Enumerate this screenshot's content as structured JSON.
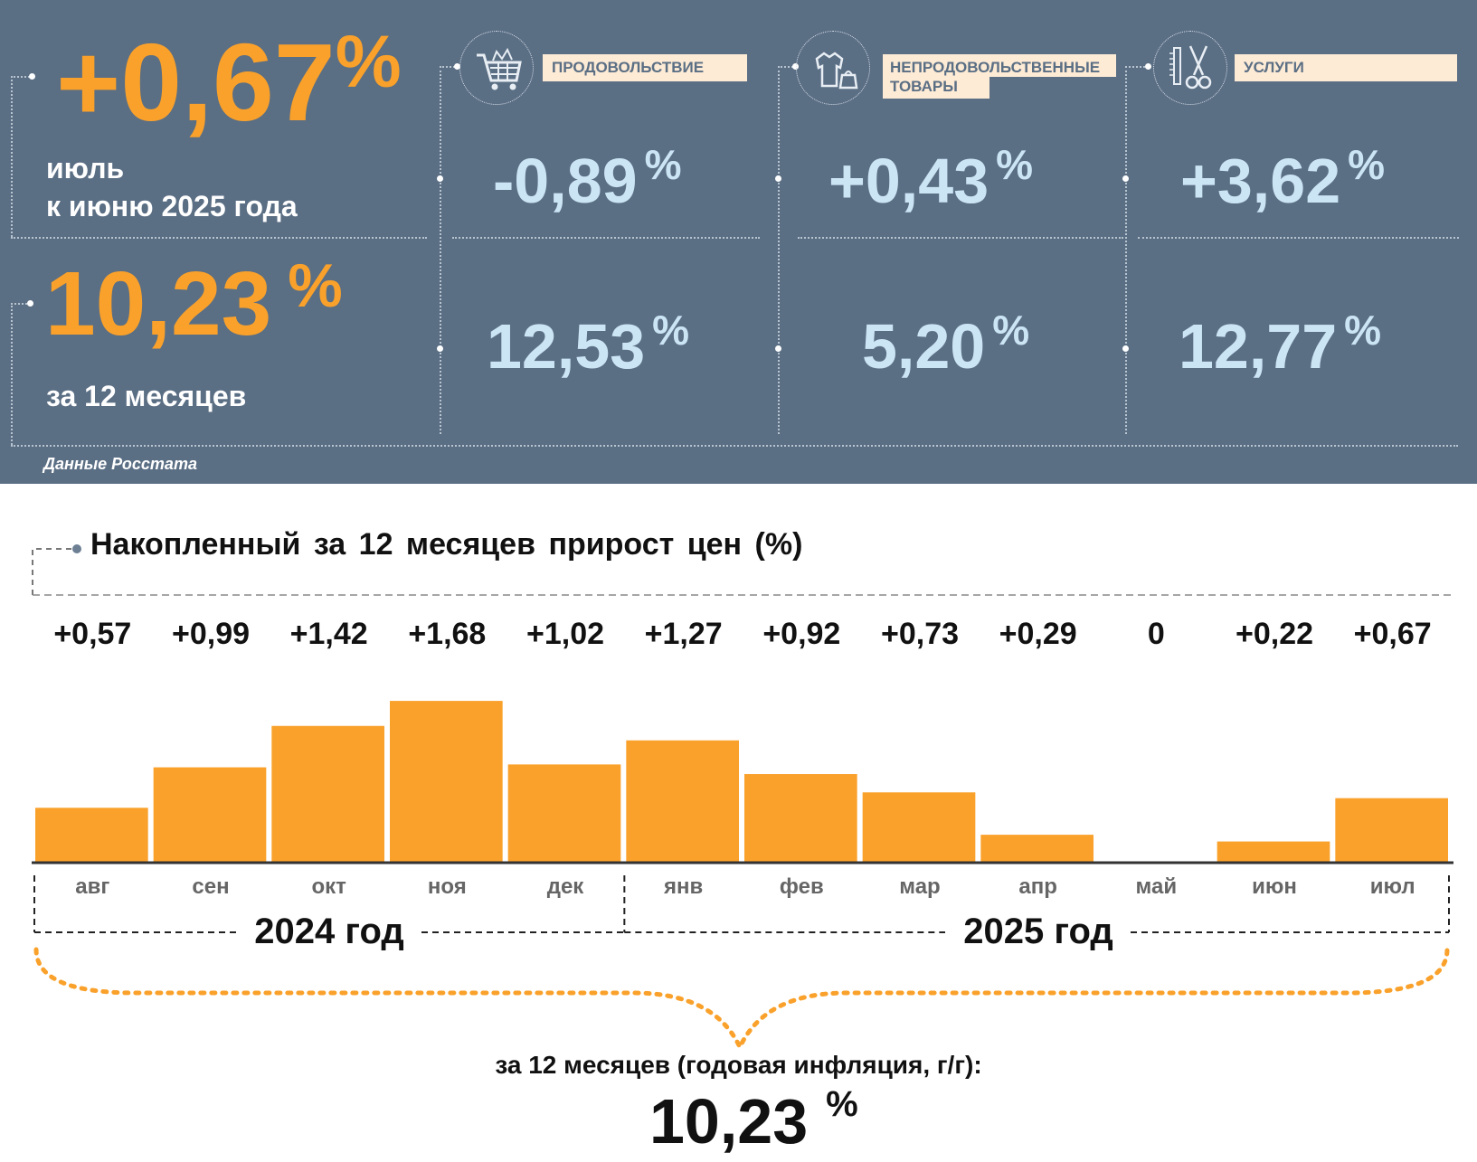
{
  "summary": {
    "monthly_value": "+0,67",
    "monthly_unit": "%",
    "monthly_label_line1": "июль",
    "monthly_label_line2": "к июню 2025 года",
    "annual_value": "10,23",
    "annual_unit": "%",
    "annual_label": "за 12 месяцев",
    "source": "Данные Росстата"
  },
  "categories": [
    {
      "label": "ПРОДОВОЛЬСТВИЕ",
      "icon": "shopping-cart-icon",
      "monthly": "-0,89",
      "annual": "12,53",
      "unit": "%"
    },
    {
      "label_line1": "НЕПРОДОВОЛЬСТВЕННЫЕ",
      "label_line2": "ТОВАРЫ",
      "icon": "clothing-bag-icon",
      "monthly": "+0,43",
      "annual": "5,20",
      "unit": "%"
    },
    {
      "label": "УСЛУГИ",
      "icon": "comb-scissors-icon",
      "monthly": "+3,62",
      "annual": "12,77",
      "unit": "%"
    }
  ],
  "colors": {
    "panel": "#5a6e84",
    "accent": "#f9a12b",
    "value_blue": "#cce5f5",
    "label_bg": "#fdebd5"
  },
  "chart_data": {
    "type": "bar",
    "title": "Накопленный за 12 месяцев прирост цен (%)",
    "categories": [
      "авг",
      "сен",
      "окт",
      "ноя",
      "дек",
      "янв",
      "фев",
      "мар",
      "апр",
      "май",
      "июн",
      "июл"
    ],
    "values": [
      0.57,
      0.99,
      1.42,
      1.68,
      1.02,
      1.27,
      0.92,
      0.73,
      0.29,
      0,
      0.22,
      0.67
    ],
    "value_labels": [
      "+0,57",
      "+0,99",
      "+1,42",
      "+1,68",
      "+1,02",
      "+1,27",
      "+0,92",
      "+0,73",
      "+0,29",
      "0",
      "+0,22",
      "+0,67"
    ],
    "year_groups": [
      {
        "label": "2024 год",
        "months": 5
      },
      {
        "label": "2025 год",
        "months": 7
      }
    ],
    "bar_color": "#f9a12b",
    "note": "за 12 месяцев (годовая инфляция, г/г):",
    "total_value": "10,23",
    "total_unit": "%"
  }
}
